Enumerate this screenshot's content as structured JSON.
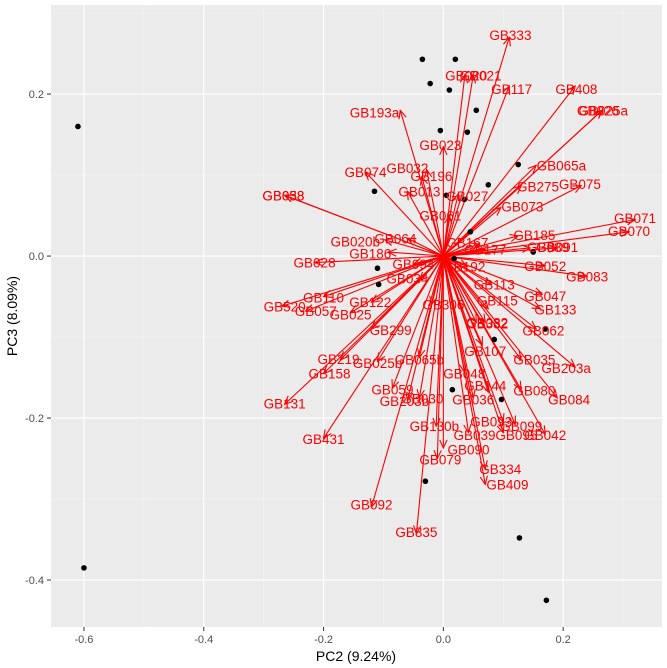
{
  "chart_data": {
    "type": "scatter",
    "subtype": "pca-biplot",
    "xlabel": "PC2 (9.24%)",
    "ylabel": "PC3 (8.09%)",
    "xlim": [
      -0.655,
      0.365
    ],
    "ylim": [
      -0.458,
      0.31
    ],
    "x_ticks": [
      -0.6,
      -0.4,
      -0.2,
      0.0,
      0.2
    ],
    "x_tick_labels": [
      "-0.6",
      "-0.4",
      "-0.2",
      "0.0",
      "0.2"
    ],
    "y_ticks": [
      -0.4,
      -0.2,
      0.0,
      0.2
    ],
    "y_tick_labels": [
      "-0.4",
      "-0.2",
      "0.0",
      "0.2"
    ],
    "grid": true,
    "point_color": "#000000",
    "vector_color": "#ff0000",
    "panel_color": "#ebebeb",
    "origin": [
      0.0,
      0.0
    ],
    "points": [
      {
        "x": -0.61,
        "y": 0.16
      },
      {
        "x": -0.6,
        "y": -0.385
      },
      {
        "x": -0.035,
        "y": 0.243
      },
      {
        "x": 0.02,
        "y": 0.243
      },
      {
        "x": -0.022,
        "y": 0.213
      },
      {
        "x": 0.01,
        "y": 0.205
      },
      {
        "x": -0.005,
        "y": 0.155
      },
      {
        "x": 0.055,
        "y": 0.18
      },
      {
        "x": 0.04,
        "y": 0.153
      },
      {
        "x": 0.125,
        "y": 0.113
      },
      {
        "x": 0.075,
        "y": 0.088
      },
      {
        "x": -0.115,
        "y": 0.08
      },
      {
        "x": 0.035,
        "y": 0.07
      },
      {
        "x": 0.005,
        "y": 0.075
      },
      {
        "x": 0.045,
        "y": 0.03
      },
      {
        "x": 0.15,
        "y": 0.005
      },
      {
        "x": -0.11,
        "y": -0.015
      },
      {
        "x": -0.108,
        "y": -0.035
      },
      {
        "x": 0.018,
        "y": -0.003
      },
      {
        "x": 0.17,
        "y": -0.09
      },
      {
        "x": 0.085,
        "y": -0.103
      },
      {
        "x": 0.015,
        "y": -0.165
      },
      {
        "x": 0.097,
        "y": -0.177
      },
      {
        "x": -0.03,
        "y": -0.278
      },
      {
        "x": 0.127,
        "y": -0.348
      },
      {
        "x": 0.172,
        "y": -0.425
      }
    ],
    "vectors": [
      {
        "name": "GB333",
        "x": 0.11,
        "y": 0.27,
        "lx": 0.112,
        "ly": 0.273
      },
      {
        "name": "GB020",
        "x": 0.036,
        "y": 0.224,
        "lx": 0.038,
        "ly": 0.223
      },
      {
        "name": "GB021",
        "x": 0.05,
        "y": 0.224,
        "lx": 0.062,
        "ly": 0.223
      },
      {
        "name": "GB117",
        "x": 0.11,
        "y": 0.21,
        "lx": 0.114,
        "ly": 0.206
      },
      {
        "name": "GB408",
        "x": 0.22,
        "y": 0.21,
        "lx": 0.222,
        "ly": 0.206
      },
      {
        "name": "GB025a",
        "x": 0.265,
        "y": 0.18,
        "lx": 0.267,
        "ly": 0.18
      },
      {
        "name": "GB026",
        "x": 0.265,
        "y": 0.18,
        "lx": 0.258,
        "ly": 0.18
      },
      {
        "name": "GB193a",
        "x": -0.072,
        "y": 0.18,
        "lx": -0.115,
        "ly": 0.177
      },
      {
        "name": "GB023",
        "x": 0.0,
        "y": 0.135,
        "lx": -0.005,
        "ly": 0.137
      },
      {
        "name": "GB065a",
        "x": 0.155,
        "y": 0.112,
        "lx": 0.197,
        "ly": 0.112
      },
      {
        "name": "GB032",
        "x": -0.028,
        "y": 0.107,
        "lx": -0.06,
        "ly": 0.109
      },
      {
        "name": "GB074",
        "x": -0.13,
        "y": 0.104,
        "lx": -0.13,
        "ly": 0.104
      },
      {
        "name": "GB196",
        "x": -0.036,
        "y": 0.098,
        "lx": -0.02,
        "ly": 0.099
      },
      {
        "name": "GB275",
        "x": 0.13,
        "y": 0.087,
        "lx": 0.158,
        "ly": 0.086
      },
      {
        "name": "GB075",
        "x": 0.23,
        "y": 0.087,
        "lx": 0.228,
        "ly": 0.089
      },
      {
        "name": "GB027",
        "x": 0.025,
        "y": 0.077,
        "lx": 0.04,
        "ly": 0.074
      },
      {
        "name": "GB073",
        "x": 0.096,
        "y": 0.06,
        "lx": 0.132,
        "ly": 0.061
      },
      {
        "name": "GB038",
        "x": -0.265,
        "y": 0.075,
        "lx": -0.267,
        "ly": 0.075
      },
      {
        "name": "GB058",
        "x": -0.265,
        "y": 0.075,
        "lx": -0.267,
        "ly": 0.075
      },
      {
        "name": "GB071",
        "x": 0.32,
        "y": 0.045,
        "lx": 0.32,
        "ly": 0.047
      },
      {
        "name": "GB070",
        "x": 0.31,
        "y": 0.03,
        "lx": 0.31,
        "ly": 0.031
      },
      {
        "name": "GB185",
        "x": 0.125,
        "y": 0.025,
        "lx": 0.152,
        "ly": 0.026
      },
      {
        "name": "GB089",
        "x": 0.145,
        "y": 0.01,
        "lx": 0.175,
        "ly": 0.011
      },
      {
        "name": "GB091",
        "x": 0.19,
        "y": 0.01,
        "lx": 0.19,
        "ly": 0.011
      },
      {
        "name": "GB020b",
        "x": -0.098,
        "y": 0.02,
        "lx": -0.147,
        "ly": 0.018
      },
      {
        "name": "GB186",
        "x": -0.092,
        "y": 0.005,
        "lx": -0.122,
        "ly": 0.003
      },
      {
        "name": "GB028",
        "x": -0.215,
        "y": -0.008,
        "lx": -0.215,
        "ly": -0.008
      },
      {
        "name": "GB052",
        "x": 0.17,
        "y": -0.012,
        "lx": 0.17,
        "ly": -0.012
      },
      {
        "name": "GB083",
        "x": 0.24,
        "y": -0.025,
        "lx": 0.24,
        "ly": -0.025
      },
      {
        "name": "GB047",
        "x": 0.165,
        "y": -0.047,
        "lx": 0.17,
        "ly": -0.049
      },
      {
        "name": "GB133",
        "x": 0.162,
        "y": -0.065,
        "lx": 0.187,
        "ly": -0.066
      },
      {
        "name": "GB110",
        "x": -0.2,
        "y": -0.05,
        "lx": -0.2,
        "ly": -0.051
      },
      {
        "name": "GB520",
        "x": -0.27,
        "y": -0.062,
        "lx": -0.265,
        "ly": -0.062
      },
      {
        "name": "GB057",
        "x": -0.23,
        "y": -0.068,
        "lx": -0.213,
        "ly": -0.068
      },
      {
        "name": "GB122",
        "x": -0.12,
        "y": -0.057,
        "lx": -0.122,
        "ly": -0.057
      },
      {
        "name": "GB025",
        "x": -0.155,
        "y": -0.07,
        "lx": -0.155,
        "ly": -0.072
      },
      {
        "name": "GB299",
        "x": -0.12,
        "y": -0.09,
        "lx": -0.088,
        "ly": -0.091
      },
      {
        "name": "GB062",
        "x": 0.155,
        "y": -0.09,
        "lx": 0.167,
        "ly": -0.092
      },
      {
        "name": "GB332",
        "x": 0.07,
        "y": -0.082,
        "lx": 0.073,
        "ly": -0.083
      },
      {
        "name": "GB219",
        "x": -0.172,
        "y": -0.128,
        "lx": -0.175,
        "ly": -0.127
      },
      {
        "name": "GB158",
        "x": -0.2,
        "y": -0.145,
        "lx": -0.19,
        "ly": -0.145
      },
      {
        "name": "GB025b",
        "x": -0.11,
        "y": -0.13,
        "lx": -0.11,
        "ly": -0.132
      },
      {
        "name": "GB065b",
        "x": -0.04,
        "y": -0.125,
        "lx": -0.04,
        "ly": -0.128
      },
      {
        "name": "GB035",
        "x": 0.13,
        "y": -0.128,
        "lx": 0.152,
        "ly": -0.128
      },
      {
        "name": "GB107",
        "x": 0.065,
        "y": -0.11,
        "lx": 0.07,
        "ly": -0.117
      },
      {
        "name": "GB203a",
        "x": 0.22,
        "y": -0.137,
        "lx": 0.205,
        "ly": -0.138
      },
      {
        "name": "GB048",
        "x": 0.035,
        "y": -0.143,
        "lx": 0.035,
        "ly": -0.145
      },
      {
        "name": "GB131",
        "x": -0.265,
        "y": -0.183,
        "lx": -0.265,
        "ly": -0.182
      },
      {
        "name": "GB059",
        "x": -0.085,
        "y": -0.163,
        "lx": -0.085,
        "ly": -0.165
      },
      {
        "name": "GB036",
        "x": 0.05,
        "y": -0.175,
        "lx": 0.05,
        "ly": -0.177
      },
      {
        "name": "GB080",
        "x": 0.13,
        "y": -0.165,
        "lx": 0.152,
        "ly": -0.166
      },
      {
        "name": "GB084",
        "x": 0.19,
        "y": -0.175,
        "lx": 0.21,
        "ly": -0.177
      },
      {
        "name": "GB203b",
        "x": -0.06,
        "y": -0.178,
        "lx": -0.065,
        "ly": -0.179
      },
      {
        "name": "GB030",
        "x": -0.04,
        "y": -0.175,
        "lx": -0.035,
        "ly": -0.176
      },
      {
        "name": "GB130b",
        "x": -0.012,
        "y": -0.21,
        "lx": -0.015,
        "ly": -0.21
      },
      {
        "name": "GB042",
        "x": 0.17,
        "y": -0.22,
        "lx": 0.17,
        "ly": -0.221
      },
      {
        "name": "GB431",
        "x": -0.2,
        "y": -0.225,
        "lx": -0.2,
        "ly": -0.226
      },
      {
        "name": "GB090",
        "x": 0.0,
        "y": -0.237,
        "lx": 0.042,
        "ly": -0.239
      },
      {
        "name": "GB079",
        "x": -0.01,
        "y": -0.25,
        "lx": -0.005,
        "ly": -0.251
      },
      {
        "name": "GB095",
        "x": 0.1,
        "y": -0.218,
        "lx": 0.122,
        "ly": -0.221
      },
      {
        "name": "GB039",
        "x": 0.042,
        "y": -0.218,
        "lx": 0.052,
        "ly": -0.221
      },
      {
        "name": "GB334",
        "x": 0.07,
        "y": -0.263,
        "lx": 0.095,
        "ly": -0.263
      },
      {
        "name": "GB409",
        "x": 0.07,
        "y": -0.282,
        "lx": 0.107,
        "ly": -0.282
      },
      {
        "name": "GB092",
        "x": -0.12,
        "y": -0.31,
        "lx": -0.12,
        "ly": -0.307
      },
      {
        "name": "GB335",
        "x": -0.045,
        "y": -0.343,
        "lx": -0.045,
        "ly": -0.341
      },
      {
        "name": "GB093",
        "x": 0.1,
        "y": -0.205,
        "lx": 0.08,
        "ly": -0.204
      },
      {
        "name": "GB099",
        "x": 0.12,
        "y": -0.208,
        "lx": 0.13,
        "ly": -0.21
      },
      {
        "name": "GB144",
        "x": 0.075,
        "y": -0.168,
        "lx": 0.07,
        "ly": -0.16
      },
      {
        "name": "GB115",
        "x": 0.075,
        "y": -0.065,
        "lx": 0.09,
        "ly": -0.055
      },
      {
        "name": "GB113",
        "x": 0.08,
        "y": -0.035,
        "lx": 0.085,
        "ly": -0.035
      },
      {
        "name": "GB192",
        "x": 0.04,
        "y": -0.013,
        "lx": 0.035,
        "ly": -0.013
      },
      {
        "name": "GB177",
        "x": 0.07,
        "y": 0.008,
        "lx": 0.07,
        "ly": 0.008
      },
      {
        "name": "GB167",
        "x": 0.06,
        "y": 0.015,
        "lx": 0.04,
        "ly": 0.017
      },
      {
        "name": "GB094",
        "x": -0.05,
        "y": -0.01,
        "lx": -0.05,
        "ly": -0.01
      },
      {
        "name": "GB034",
        "x": -0.04,
        "y": -0.03,
        "lx": -0.06,
        "ly": -0.028
      },
      {
        "name": "GB082",
        "x": 0.055,
        "y": -0.082,
        "lx": 0.073,
        "ly": -0.082
      },
      {
        "name": "GB306",
        "x": -0.02,
        "y": -0.06,
        "lx": 0.0,
        "ly": -0.06
      },
      {
        "name": "GB013",
        "x": -0.06,
        "y": 0.08,
        "lx": -0.04,
        "ly": 0.08
      },
      {
        "name": "GB061",
        "x": 0.01,
        "y": 0.05,
        "lx": -0.005,
        "ly": 0.05
      },
      {
        "name": "GB064",
        "x": -0.06,
        "y": 0.022,
        "lx": -0.08,
        "ly": 0.022
      }
    ]
  }
}
